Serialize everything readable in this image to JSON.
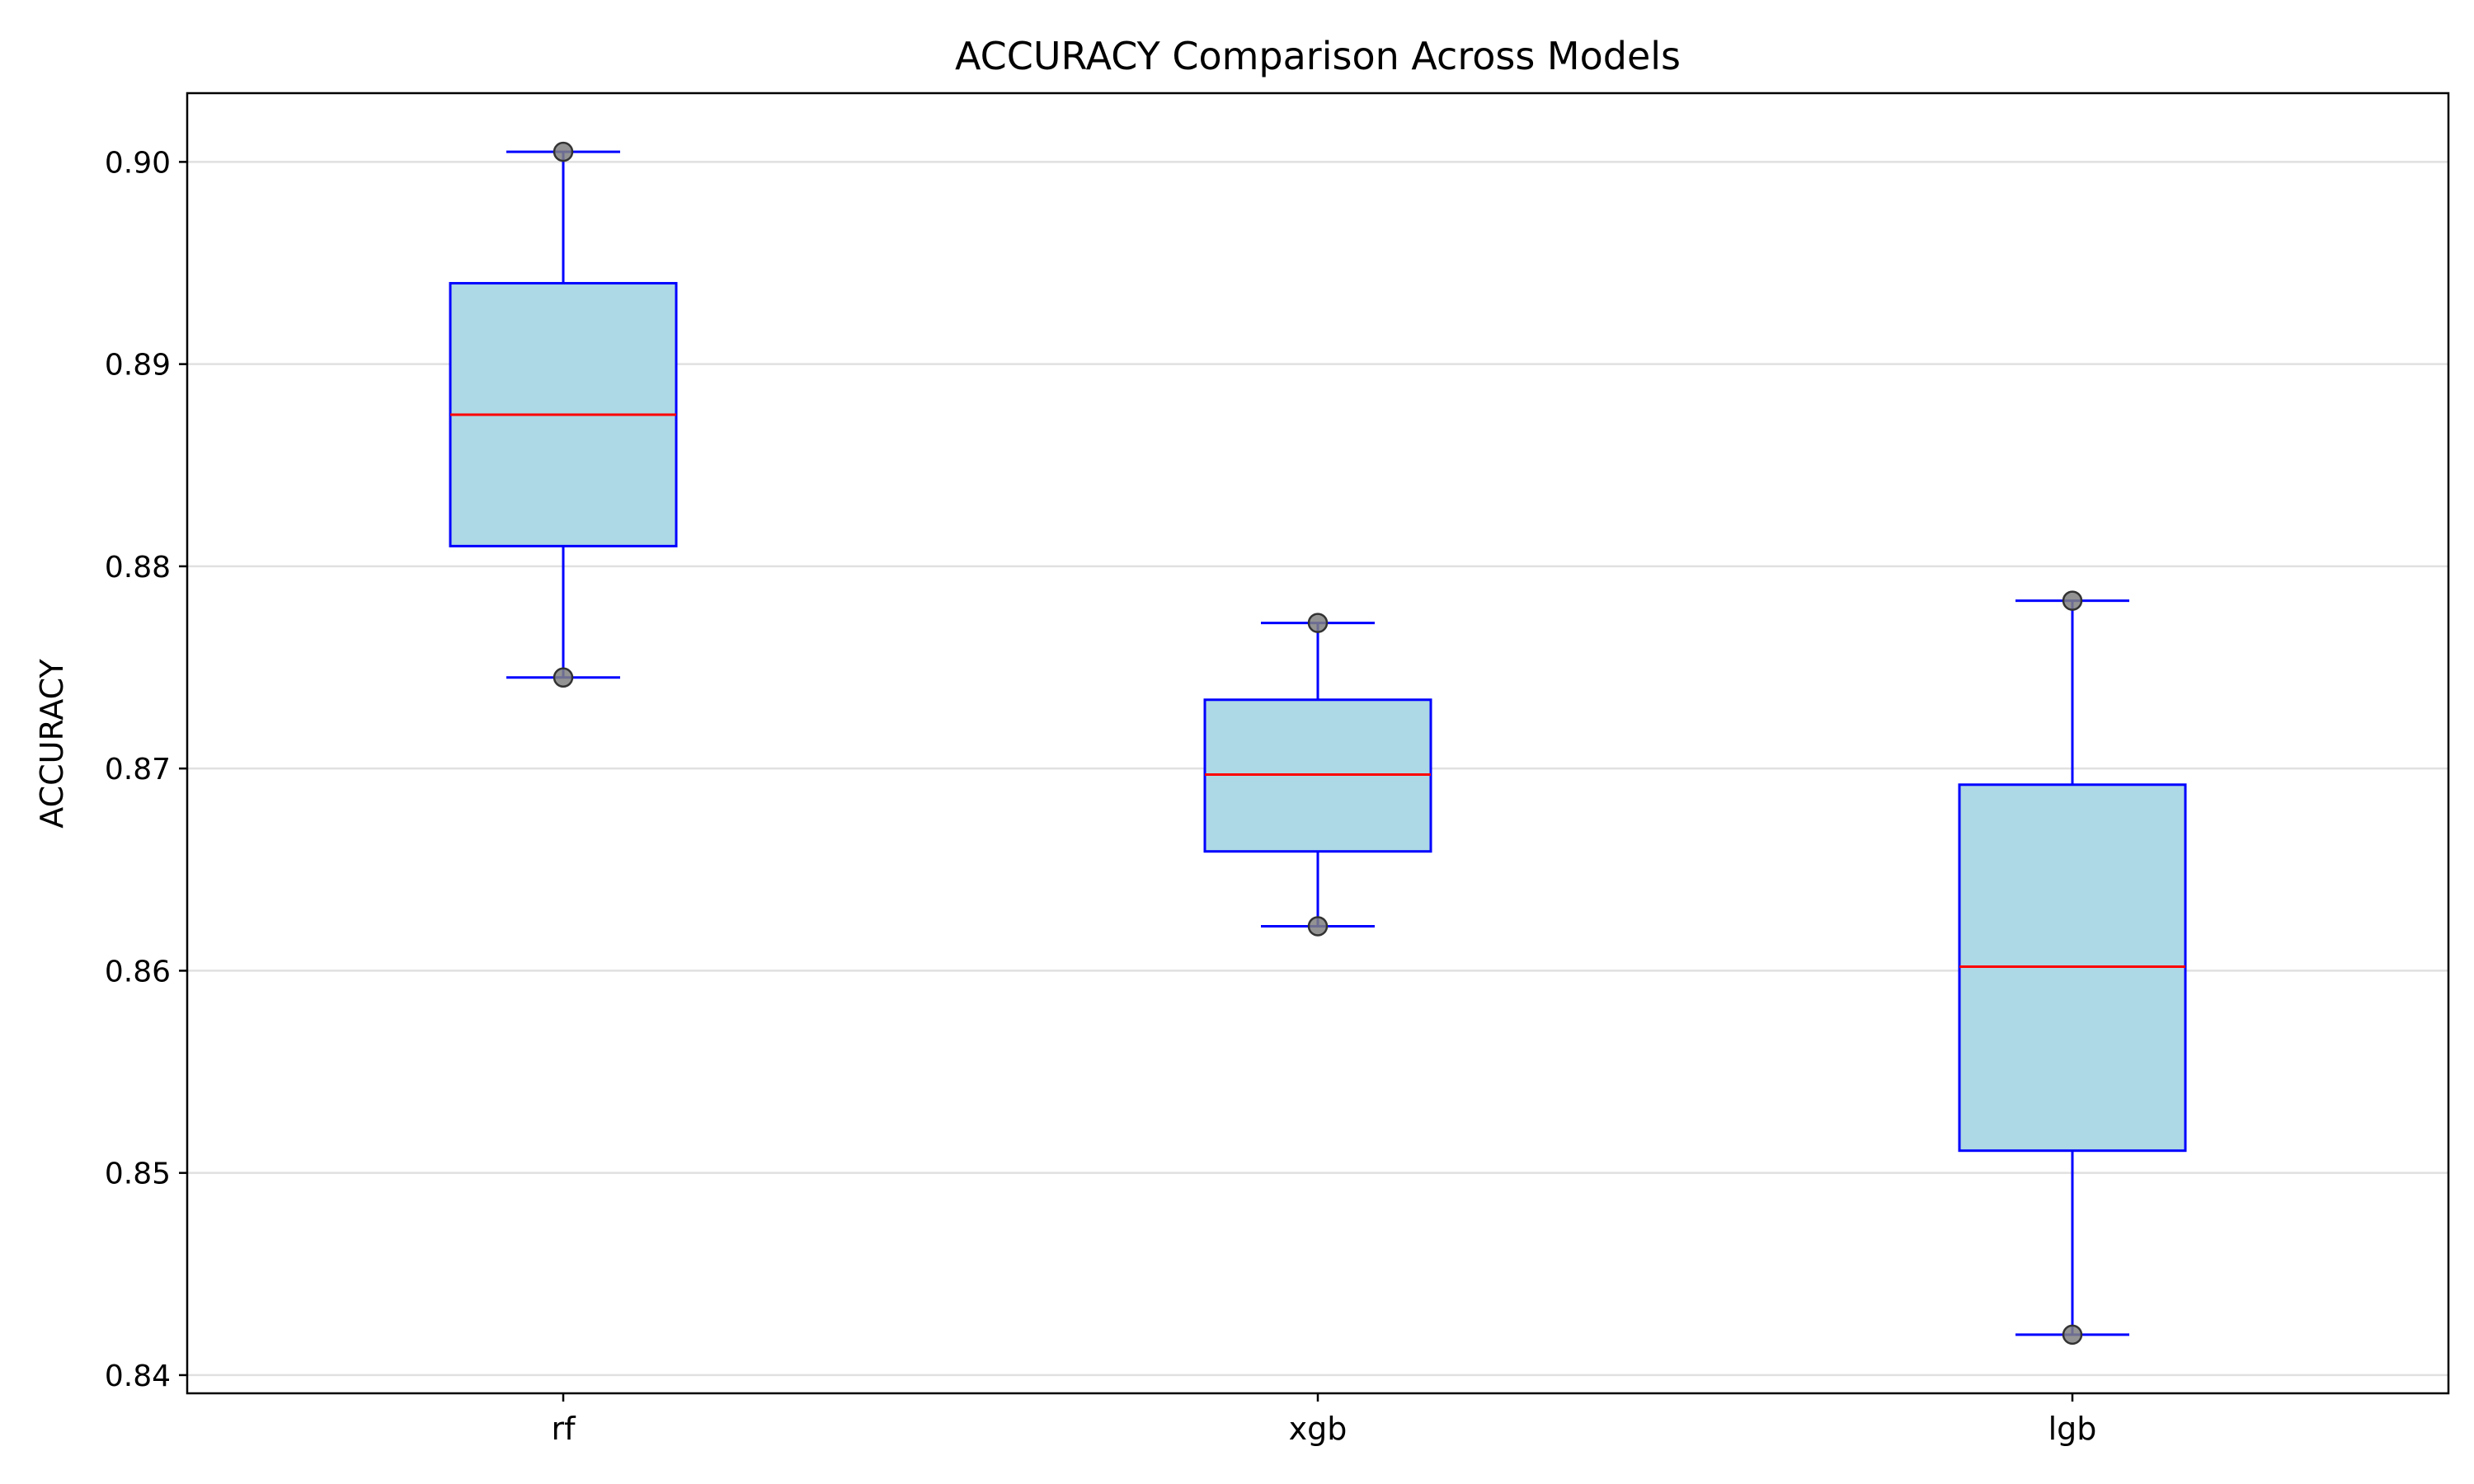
{
  "chart_data": {
    "type": "box",
    "title": "ACCURACY Comparison Across Models",
    "xlabel": "",
    "ylabel": "ACCURACY",
    "ylim": [
      0.8391,
      0.9034
    ],
    "yticks": [
      0.84,
      0.85,
      0.86,
      0.87,
      0.88,
      0.89,
      0.9
    ],
    "ytick_labels": [
      "0.84",
      "0.85",
      "0.86",
      "0.87",
      "0.88",
      "0.89",
      "0.90"
    ],
    "grid": "horizontal",
    "categories": [
      "rf",
      "xgb",
      "lgb"
    ],
    "boxes": [
      {
        "category": "rf",
        "whisker_low": 0.8745,
        "q1": 0.881,
        "median": 0.8875,
        "q3": 0.894,
        "whisker_high": 0.9005,
        "points": [
          0.9005,
          0.8745
        ]
      },
      {
        "category": "xgb",
        "whisker_low": 0.8622,
        "q1": 0.8659,
        "median": 0.8697,
        "q3": 0.8734,
        "whisker_high": 0.8772,
        "points": [
          0.8772,
          0.8622
        ]
      },
      {
        "category": "lgb",
        "whisker_low": 0.842,
        "q1": 0.8511,
        "median": 0.8602,
        "q3": 0.8692,
        "whisker_high": 0.8783,
        "points": [
          0.8783,
          0.842
        ]
      }
    ],
    "colors": {
      "box_fill": "#add8e6",
      "box_edge": "#0000ff",
      "median": "#ff0000",
      "points": "#808080",
      "grid": "#e0e0e0"
    }
  }
}
